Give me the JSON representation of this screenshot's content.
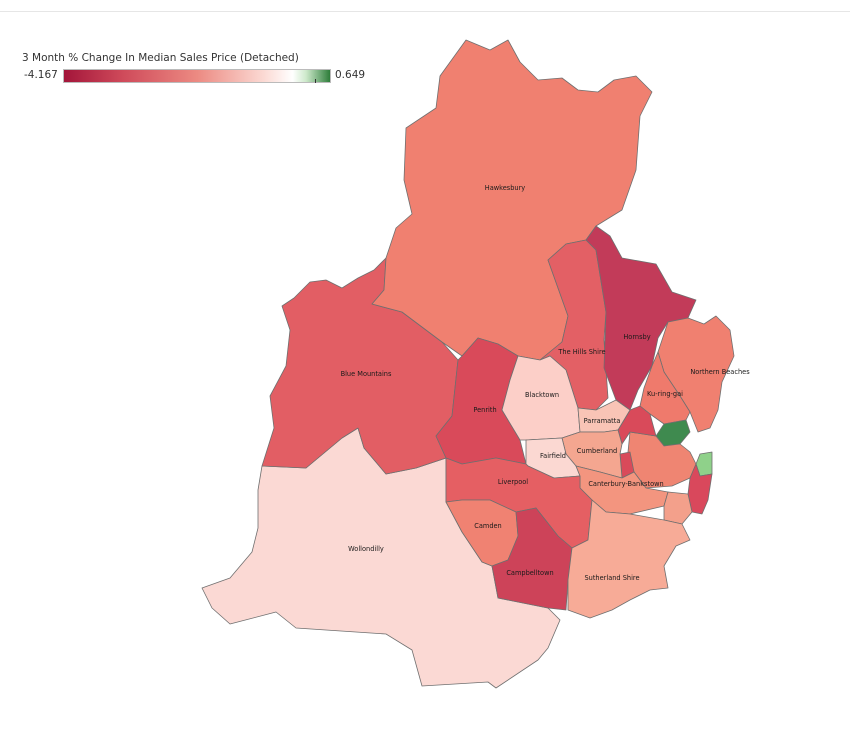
{
  "legend": {
    "title": "3 Month % Change In Median Sales Price (Detached)",
    "min_label": "-4.167",
    "max_label": "0.649",
    "min": -4.167,
    "max": 0.649
  },
  "colors": {
    "deep_red": "#c23b56",
    "red": "#dd5a63",
    "salmon": "#f17f72",
    "light_salmon": "#f5a593",
    "pale_pink": "#fbd8d2",
    "green": "#3f8a4f",
    "light_green": "#8fd18a",
    "border": "#6f6f6f"
  },
  "regions": [
    {
      "name": "Hawkesbury",
      "color": "#f08070"
    },
    {
      "name": "Blue Mountains",
      "color": "#e25e64"
    },
    {
      "name": "Wollondilly",
      "color": "#fbd9d4"
    },
    {
      "name": "The Hills Shire",
      "color": "#e36065"
    },
    {
      "name": "Hornsby",
      "color": "#c23b59"
    },
    {
      "name": "Northern Beaches",
      "color": "#f08070"
    },
    {
      "name": "Ku-ring-gai",
      "color": "#ef7a6c"
    },
    {
      "name": "Penrith",
      "color": "#d94a5a"
    },
    {
      "name": "Blacktown",
      "color": "#fccfc8"
    },
    {
      "name": "Parramatta",
      "color": "#f9c4b6"
    },
    {
      "name": "Cumberland",
      "color": "#f4a690"
    },
    {
      "name": "Fairfield",
      "color": "#fbd8d2"
    },
    {
      "name": "Canterbury-Bankstown",
      "color": "#f3957f"
    },
    {
      "name": "Liverpool",
      "color": "#e55f63"
    },
    {
      "name": "Camden",
      "color": "#f08272"
    },
    {
      "name": "Campbelltown",
      "color": "#cd4359"
    },
    {
      "name": "Sutherland Shire",
      "color": "#f7ab97"
    }
  ]
}
